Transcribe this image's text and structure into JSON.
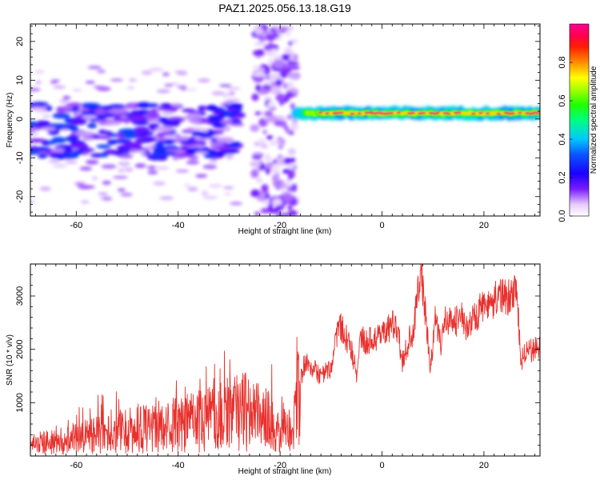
{
  "title": "PAZ1.2025.056.13.18.G19",
  "chart_data": [
    {
      "type": "heatmap",
      "xlabel": "Height of straight line (km)",
      "ylabel": "Frequency (Hz)",
      "xlim": [
        -69,
        31
      ],
      "ylim": [
        -25,
        24.5
      ],
      "xticks": [
        -60,
        -40,
        -20,
        0,
        20
      ],
      "yticks": [
        -20,
        -10,
        0,
        10,
        20
      ],
      "colorbar": {
        "label": "Normalized spectral amplitude",
        "range": [
          0,
          1
        ],
        "ticks": [
          0.0,
          0.2,
          0.4,
          0.6,
          0.8
        ],
        "colormap": "rainbow (white-violet-blue-cyan-green-yellow-red-magenta)"
      },
      "features": [
        {
          "name": "scattered low-amplitude signal",
          "x_range": [
            -69,
            -28
          ],
          "freq_range": [
            -10,
            4
          ],
          "amplitude": 0.25
        },
        {
          "name": "vertical noise band",
          "x_range": [
            -25,
            -17
          ],
          "freq_range": [
            -25,
            24
          ],
          "amplitude": 0.08
        },
        {
          "name": "main tone",
          "x_range": [
            -17,
            31
          ],
          "freq_range": [
            0.5,
            2.5
          ],
          "amplitude": 0.95
        }
      ]
    },
    {
      "type": "line",
      "xlabel": "Height of straight line (km)",
      "ylabel": "SNR (10 * v/v)",
      "xlim": [
        -69,
        31
      ],
      "ylim": [
        0,
        3600
      ],
      "xticks": [
        -60,
        -40,
        -20,
        0,
        20
      ],
      "yticks": [
        1000,
        2000,
        3000
      ],
      "color": "#e8312d",
      "series": [
        {
          "x": [
            -69,
            -66,
            -63,
            -60,
            -57,
            -54,
            -51,
            -48,
            -45,
            -42,
            -39,
            -36,
            -33,
            -30,
            -27,
            -24,
            -22,
            -20,
            -18,
            -16,
            -15,
            -14,
            -12,
            -10,
            -9,
            -8,
            -6,
            -5,
            -4,
            -3,
            -2,
            0,
            2,
            3,
            4,
            5,
            6,
            7,
            7.6,
            8.5,
            9.5,
            10.5,
            11.5,
            12.5,
            14,
            15.5,
            17,
            19,
            21,
            23,
            25,
            26.5,
            27.2,
            28,
            30,
            31
          ],
          "y": [
            200,
            260,
            280,
            340,
            400,
            420,
            480,
            500,
            520,
            560,
            600,
            650,
            700,
            750,
            850,
            700,
            650,
            450,
            500,
            1400,
            1800,
            1700,
            1500,
            1650,
            2200,
            2400,
            2000,
            1550,
            2300,
            2100,
            2200,
            2300,
            2450,
            2400,
            1750,
            2100,
            2300,
            3050,
            3500,
            2700,
            1550,
            2700,
            2050,
            2550,
            2500,
            2600,
            2400,
            2700,
            2900,
            2950,
            3000,
            3050,
            1800,
            1900,
            2000,
            2000
          ]
        }
      ]
    }
  ]
}
